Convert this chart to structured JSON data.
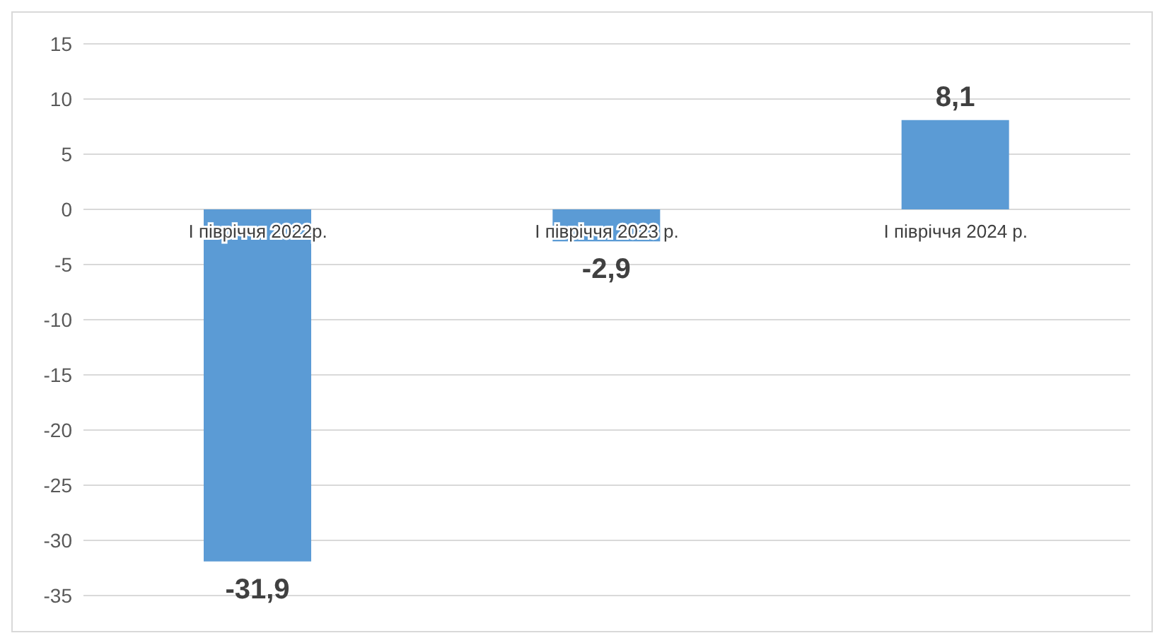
{
  "chart_data": {
    "type": "bar",
    "categories": [
      "І півріччя 2022р.",
      "І півріччя 2023 р.",
      "І півріччя 2024 р."
    ],
    "values": [
      -31.9,
      -2.9,
      8.1
    ],
    "value_labels": [
      "-31,9",
      "-2,9",
      "8,1"
    ],
    "color": "#5b9bd5",
    "ylim": [
      -35,
      15
    ],
    "yticks": [
      -35,
      -30,
      -25,
      -20,
      -15,
      -10,
      -5,
      0,
      5,
      10,
      15
    ],
    "grid": "y"
  }
}
